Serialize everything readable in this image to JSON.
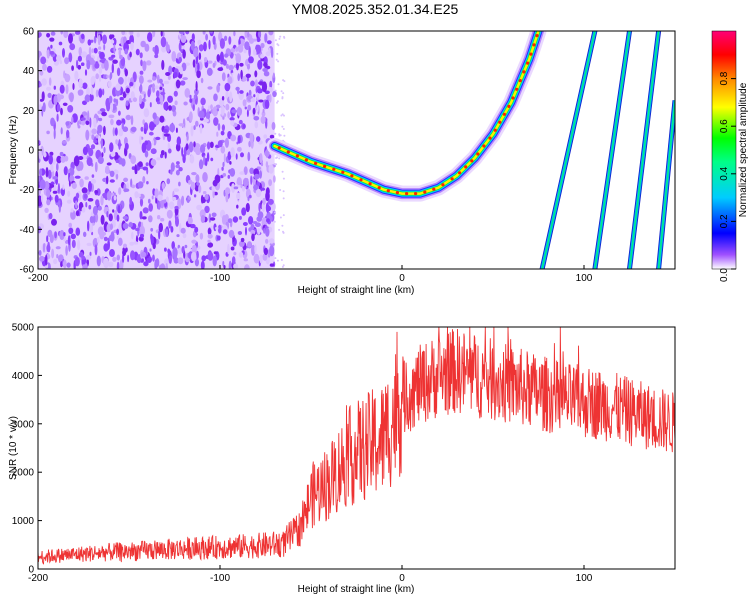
{
  "title": "YM08.2025.352.01.34.E25",
  "chart_data": [
    {
      "type": "heatmap",
      "xlabel": "Height of straight line (km)",
      "ylabel": "Frequency (Hz)",
      "xlim": [
        -200,
        150
      ],
      "ylim": [
        -60,
        60
      ],
      "xticks": [
        "-200",
        "-100",
        "0",
        "100"
      ],
      "yticks": [
        "60",
        "40",
        "20",
        "0",
        "-20",
        "-40",
        "-60"
      ],
      "noise_region_x": [
        -200,
        -70
      ],
      "main_curve": {
        "x": [
          -70,
          -60,
          -50,
          -40,
          -30,
          -20,
          -10,
          0,
          10,
          20,
          30,
          40,
          50,
          60,
          70,
          75
        ],
        "y": [
          2,
          -2,
          -6,
          -9,
          -12,
          -16,
          -20,
          -22,
          -22,
          -19,
          -13,
          -4,
          8,
          24,
          46,
          60
        ]
      },
      "aliased_lines": [
        {
          "x": [
            77,
            106
          ],
          "y": [
            -60,
            60
          ]
        },
        {
          "x": [
            106,
            125
          ],
          "y": [
            -60,
            60
          ]
        },
        {
          "x": [
            125,
            141
          ],
          "y": [
            -60,
            60
          ]
        },
        {
          "x": [
            141,
            150
          ],
          "y": [
            -60,
            25
          ]
        }
      ],
      "colorbar": {
        "label": "Normalized spectral amplitude",
        "ticks": [
          "0.0",
          "0.2",
          "0.4",
          "0.6",
          "0.8"
        ],
        "colors": [
          "#ffffff",
          "#8800ff",
          "#0000ff",
          "#00ffff",
          "#00ff00",
          "#ffff00",
          "#ff0000",
          "#ff0088"
        ]
      }
    },
    {
      "type": "line",
      "xlabel": "Height of straight line (km)",
      "ylabel": "SNR (10 * v/v)",
      "xlim": [
        -200,
        150
      ],
      "ylim": [
        0,
        5000
      ],
      "xticks": [
        "-200",
        "-100",
        "0",
        "100"
      ],
      "yticks": [
        "5000",
        "4000",
        "3000",
        "2000",
        "1000",
        "0"
      ],
      "color": "#ee3333",
      "series": [
        {
          "x": [
            -200,
            -180,
            -160,
            -140,
            -120,
            -100,
            -80,
            -65,
            -55,
            -50,
            -40,
            -30,
            -20,
            -10,
            0,
            10,
            20,
            30,
            40,
            50,
            60,
            70,
            80,
            90,
            100,
            110,
            120,
            130,
            140,
            150
          ],
          "values": [
            250,
            300,
            350,
            380,
            420,
            450,
            480,
            520,
            900,
            1500,
            1800,
            2300,
            2500,
            2700,
            3500,
            3800,
            4000,
            4100,
            4000,
            3900,
            3800,
            3700,
            3600,
            3500,
            3450,
            3400,
            3300,
            3200,
            3100,
            3000
          ]
        }
      ]
    }
  ]
}
